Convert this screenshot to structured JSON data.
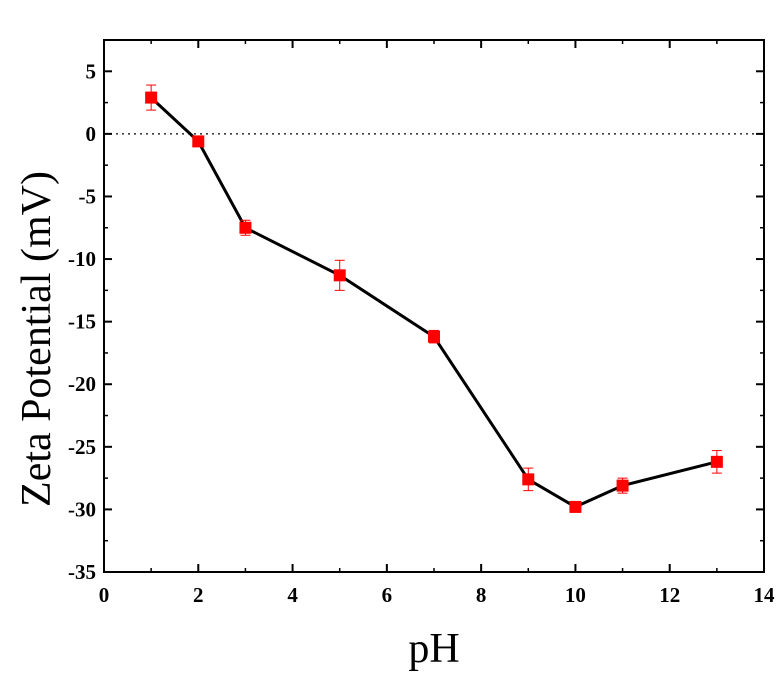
{
  "chart_data": {
    "type": "scatter",
    "title": "",
    "xlabel": "pH",
    "ylabel": "Zeta Potential (mV)",
    "xlim": [
      0,
      14
    ],
    "ylim": [
      -35,
      7.5
    ],
    "x_ticks": [
      0,
      2,
      4,
      6,
      8,
      10,
      12,
      14
    ],
    "x_tick_labels": [
      "0",
      "2",
      "4",
      "6",
      "8",
      "10",
      "12",
      "14"
    ],
    "y_ticks": [
      5,
      0,
      -5,
      -10,
      -15,
      -20,
      -25,
      -30,
      -35
    ],
    "y_tick_labels": [
      "5",
      "0",
      "-5",
      "-10",
      "-15",
      "-20",
      "-25",
      "-30",
      "-35"
    ],
    "reference_line": {
      "y": 0,
      "style": "dotted"
    },
    "grid": false,
    "legend": "none",
    "series": [
      {
        "color": "#ff0000",
        "line_color": "#000000",
        "marker": "square",
        "points": [
          {
            "x": 1,
            "y": 2.9,
            "err": 1.0
          },
          {
            "x": 2,
            "y": -0.6,
            "err": 0.3
          },
          {
            "x": 3,
            "y": -7.5,
            "err": 0.6
          },
          {
            "x": 5,
            "y": -11.3,
            "err": 1.2
          },
          {
            "x": 7,
            "y": -16.2,
            "err": 0.5
          },
          {
            "x": 9,
            "y": -27.6,
            "err": 0.9
          },
          {
            "x": 10,
            "y": -29.8,
            "err": 0.3
          },
          {
            "x": 11,
            "y": -28.1,
            "err": 0.6
          },
          {
            "x": 13,
            "y": -26.2,
            "err": 0.9
          }
        ]
      }
    ]
  }
}
